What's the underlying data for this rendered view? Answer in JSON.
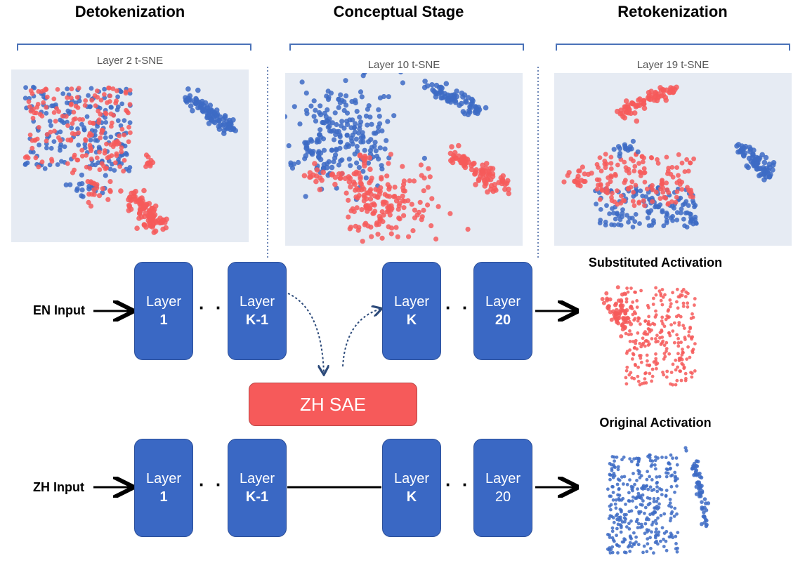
{
  "stages": {
    "detokenization": "Detokenization",
    "conceptual": "Conceptual Stage",
    "retokenization": "Retokenization"
  },
  "panels": {
    "layer2": "Layer 2 t-SNE",
    "layer10": "Layer 10 t-SNE",
    "layer19": "Layer 19 t-SNE"
  },
  "inputs": {
    "en": "EN Input",
    "zh": "ZH Input"
  },
  "layers": {
    "label": "Layer",
    "dots": "· · ·",
    "en": [
      "1",
      "K-1",
      "K",
      "20"
    ],
    "zh": [
      "1",
      "K-1",
      "K",
      "20"
    ]
  },
  "sae": {
    "label": "ZH SAE"
  },
  "activations": {
    "substituted": "Substituted Activation",
    "original": "Original Activation"
  },
  "colors": {
    "en": "#3d6bc4",
    "zh": "#f65a5a",
    "layer_box": "#3a68c4",
    "panel_bg": "#e6ebf3"
  }
}
